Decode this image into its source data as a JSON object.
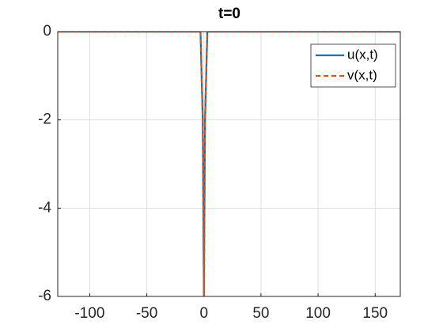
{
  "chart_data": {
    "type": "line",
    "title": "t=0",
    "x": [
      -128,
      -3,
      -1,
      0,
      1,
      3,
      172
    ],
    "series": [
      {
        "name": "u(x,t)",
        "color": "#0072BD",
        "dash": false,
        "values": [
          0,
          0,
          -2,
          -6,
          -2,
          0,
          0
        ]
      },
      {
        "name": "v(x,t)",
        "color": "#D95319",
        "dash": true,
        "values": [
          0,
          0,
          -2,
          -6,
          -2,
          0,
          0
        ]
      }
    ],
    "xlim": [
      -128,
      172
    ],
    "xticks": [
      -100,
      -50,
      0,
      50,
      100,
      150
    ],
    "ylim": [
      -6,
      0
    ],
    "yticks": [
      -6,
      -4,
      -2,
      0
    ],
    "grid": true,
    "legend": "northeast"
  }
}
